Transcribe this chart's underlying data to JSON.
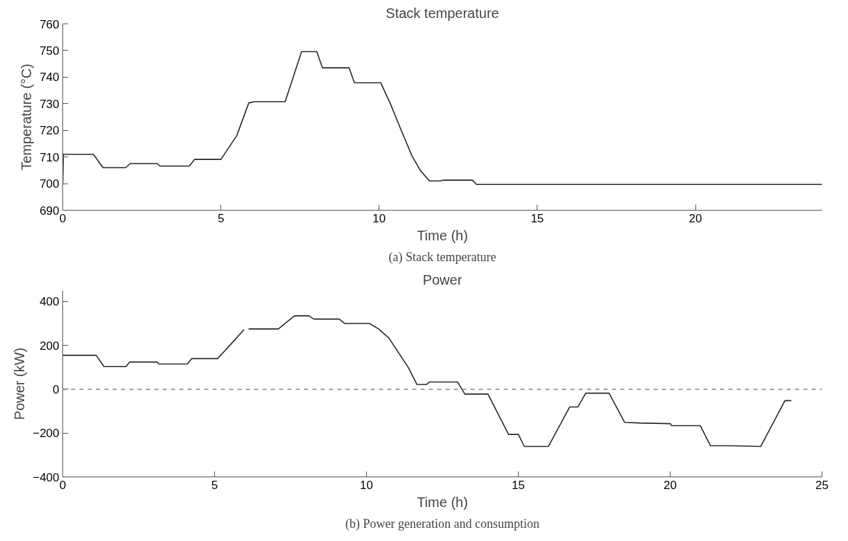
{
  "chart_data": [
    {
      "type": "line",
      "title": "Stack temperature",
      "xlabel": "Time (h)",
      "ylabel": "Temperature (°C)",
      "x": [
        0,
        0.02,
        0.97,
        1.27,
        1.99,
        2.13,
        2.99,
        3.07,
        4.0,
        4.17,
        5.0,
        5.5,
        5.88,
        6.06,
        7.03,
        7.55,
        8.03,
        8.21,
        9.05,
        9.22,
        10.05,
        10.36,
        10.7,
        11.04,
        11.3,
        11.59,
        11.94,
        12.03,
        12.95,
        13.08,
        24.0
      ],
      "series": [
        {
          "color": "#262626",
          "values": [
            700,
            711,
            711,
            706,
            706,
            707.5,
            707.5,
            706.6,
            706.6,
            709.1,
            709.1,
            718,
            730.3,
            730.8,
            730.8,
            749.6,
            749.6,
            743.5,
            743.5,
            737.9,
            737.9,
            729.9,
            720,
            710.4,
            705,
            701,
            701,
            701.3,
            701.3,
            699.7,
            699.7
          ]
        }
      ],
      "xlim": [
        0,
        24
      ],
      "xticks": [
        0,
        5,
        10,
        15,
        20
      ],
      "ylim": [
        690,
        760
      ],
      "yticks": [
        690,
        700,
        710,
        720,
        730,
        740,
        750,
        760
      ],
      "grid": false,
      "line_style": "solid",
      "annotations": [
        "(a) Stack temperature"
      ]
    },
    {
      "type": "line",
      "title": "Power",
      "xlabel": "Time (h)",
      "ylabel": "Power (kW)",
      "x": [
        0,
        1.1,
        1.36,
        2.08,
        2.2,
        3.1,
        3.17,
        4.1,
        4.25,
        5.1,
        5.5,
        5.97,
        6.05,
        6.12,
        7.1,
        7.63,
        8.1,
        8.27,
        9.1,
        9.28,
        10.1,
        10.4,
        10.74,
        11.38,
        11.66,
        11.98,
        12.08,
        13.0,
        13.24,
        14.0,
        14.68,
        15.0,
        15.2,
        15.99,
        16.69,
        16.96,
        17.22,
        17.99,
        18.5,
        18.98,
        20.0,
        20.05,
        20.99,
        21.33,
        21.99,
        22.98,
        23.78,
        23.99
      ],
      "series": [
        {
          "color": "#262626",
          "values": [
            155,
            155,
            103,
            103,
            124,
            124,
            115,
            115,
            140,
            140,
            200,
            272,
            null,
            275,
            275,
            335,
            335,
            320,
            320,
            300,
            300,
            275,
            233,
            99,
            22,
            22,
            33,
            33,
            -22,
            -22,
            -206,
            -206,
            -261,
            -261,
            -81,
            -81,
            -18,
            -18,
            -151,
            -154,
            -157,
            -166,
            -166,
            -258,
            -258,
            -261,
            -52,
            -52
          ]
        }
      ],
      "xlim": [
        0,
        25
      ],
      "xticks": [
        0,
        5,
        10,
        15,
        20,
        25
      ],
      "ylim": [
        -400,
        450
      ],
      "yticks": [
        -400,
        -200,
        0,
        200,
        400
      ],
      "grid": false,
      "line_style": "solid",
      "ref_lines": [
        {
          "axis": "y",
          "value": 0,
          "color": "#808080",
          "line_style": "dashed"
        }
      ],
      "annotations": [
        "(b) Power generation and consumption"
      ]
    }
  ]
}
